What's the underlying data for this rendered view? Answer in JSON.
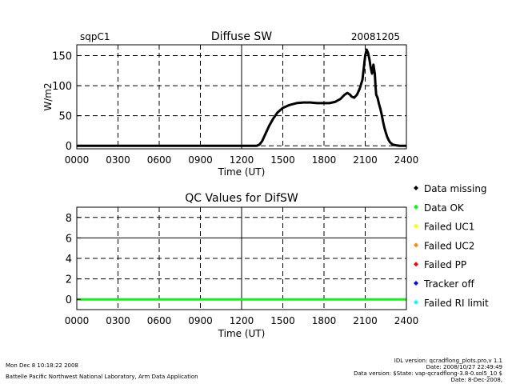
{
  "chart_data": [
    {
      "type": "line",
      "site": "sqpC1",
      "title": "Diffuse SW",
      "date": "20081205",
      "xlabel": "Time (UT)",
      "ylabel": "W/m2",
      "xlim": [
        0,
        24
      ],
      "ylim": [
        -5,
        168
      ],
      "xticks": [
        "0000",
        "0300",
        "0600",
        "0900",
        "1200",
        "1500",
        "1800",
        "2100",
        "2400"
      ],
      "yticks": [
        0,
        50,
        100,
        150
      ],
      "grid": true,
      "series": [
        {
          "values_x": [
            0,
            13.1,
            13.3,
            13.5,
            13.7,
            14.0,
            14.3,
            14.6,
            15.0,
            15.5,
            16.0,
            16.5,
            17.0,
            17.5,
            18.0,
            18.4,
            18.8,
            19.2,
            19.5,
            19.7,
            19.9,
            20.0,
            20.2,
            20.4,
            20.6,
            20.8,
            20.9,
            21.0,
            21.1,
            21.2,
            21.3,
            21.4,
            21.5,
            21.6,
            21.7,
            21.75,
            21.8,
            21.9,
            22.0,
            22.1,
            22.2,
            22.3,
            22.4,
            22.5,
            22.6,
            22.7,
            22.8,
            23.0,
            23.2,
            23.5,
            24.0
          ],
          "values_y": [
            0,
            0,
            2,
            8,
            18,
            33,
            45,
            55,
            63,
            68,
            71,
            72,
            72,
            71,
            71,
            71,
            73,
            78,
            85,
            88,
            85,
            82,
            80,
            85,
            95,
            110,
            130,
            150,
            160,
            155,
            145,
            130,
            120,
            135,
            120,
            100,
            85,
            80,
            70,
            62,
            52,
            40,
            30,
            22,
            15,
            10,
            6,
            2,
            1,
            0,
            0
          ]
        }
      ]
    },
    {
      "type": "line",
      "title": "QC Values for DifSW",
      "xlabel": "Time (UT)",
      "xlim": [
        0,
        24
      ],
      "ylim": [
        -1,
        9
      ],
      "xticks": [
        "0000",
        "0300",
        "0600",
        "0900",
        "1200",
        "1500",
        "1800",
        "2100",
        "2400"
      ],
      "yticks": [
        0,
        2,
        4,
        6,
        8
      ],
      "grid": true,
      "series": [
        {
          "values_x": [
            0,
            24
          ],
          "values_y": [
            0,
            0
          ],
          "color": "#00ff00"
        }
      ]
    }
  ],
  "legend": [
    {
      "label": "Data missing",
      "color": "#000000"
    },
    {
      "label": "Data OK",
      "color": "#00ff00"
    },
    {
      "label": "Failed UC1",
      "color": "#ffff00"
    },
    {
      "label": "Failed UC2",
      "color": "#ff8c00"
    },
    {
      "label": "Failed PP",
      "color": "#ff0000"
    },
    {
      "label": "Tracker off",
      "color": "#0000ff"
    },
    {
      "label": "Failed RI limit",
      "color": "#00ffff"
    }
  ],
  "footer": {
    "timestamp": "Mon Dec  8 10:18:22 2008",
    "credit": "Battelle Pacific Northwest National Laboratory, Arm Data Application",
    "idl_version": "IDL version: qcradflong_plots.pro,v 1.1",
    "version_date": "Date: 2008/10/27 22:49:49",
    "data_version": "Data version: $State: vap-qcradflong-3.8-0.sol5_10 $",
    "data_date": "Date: 8-Dec-2008,"
  }
}
